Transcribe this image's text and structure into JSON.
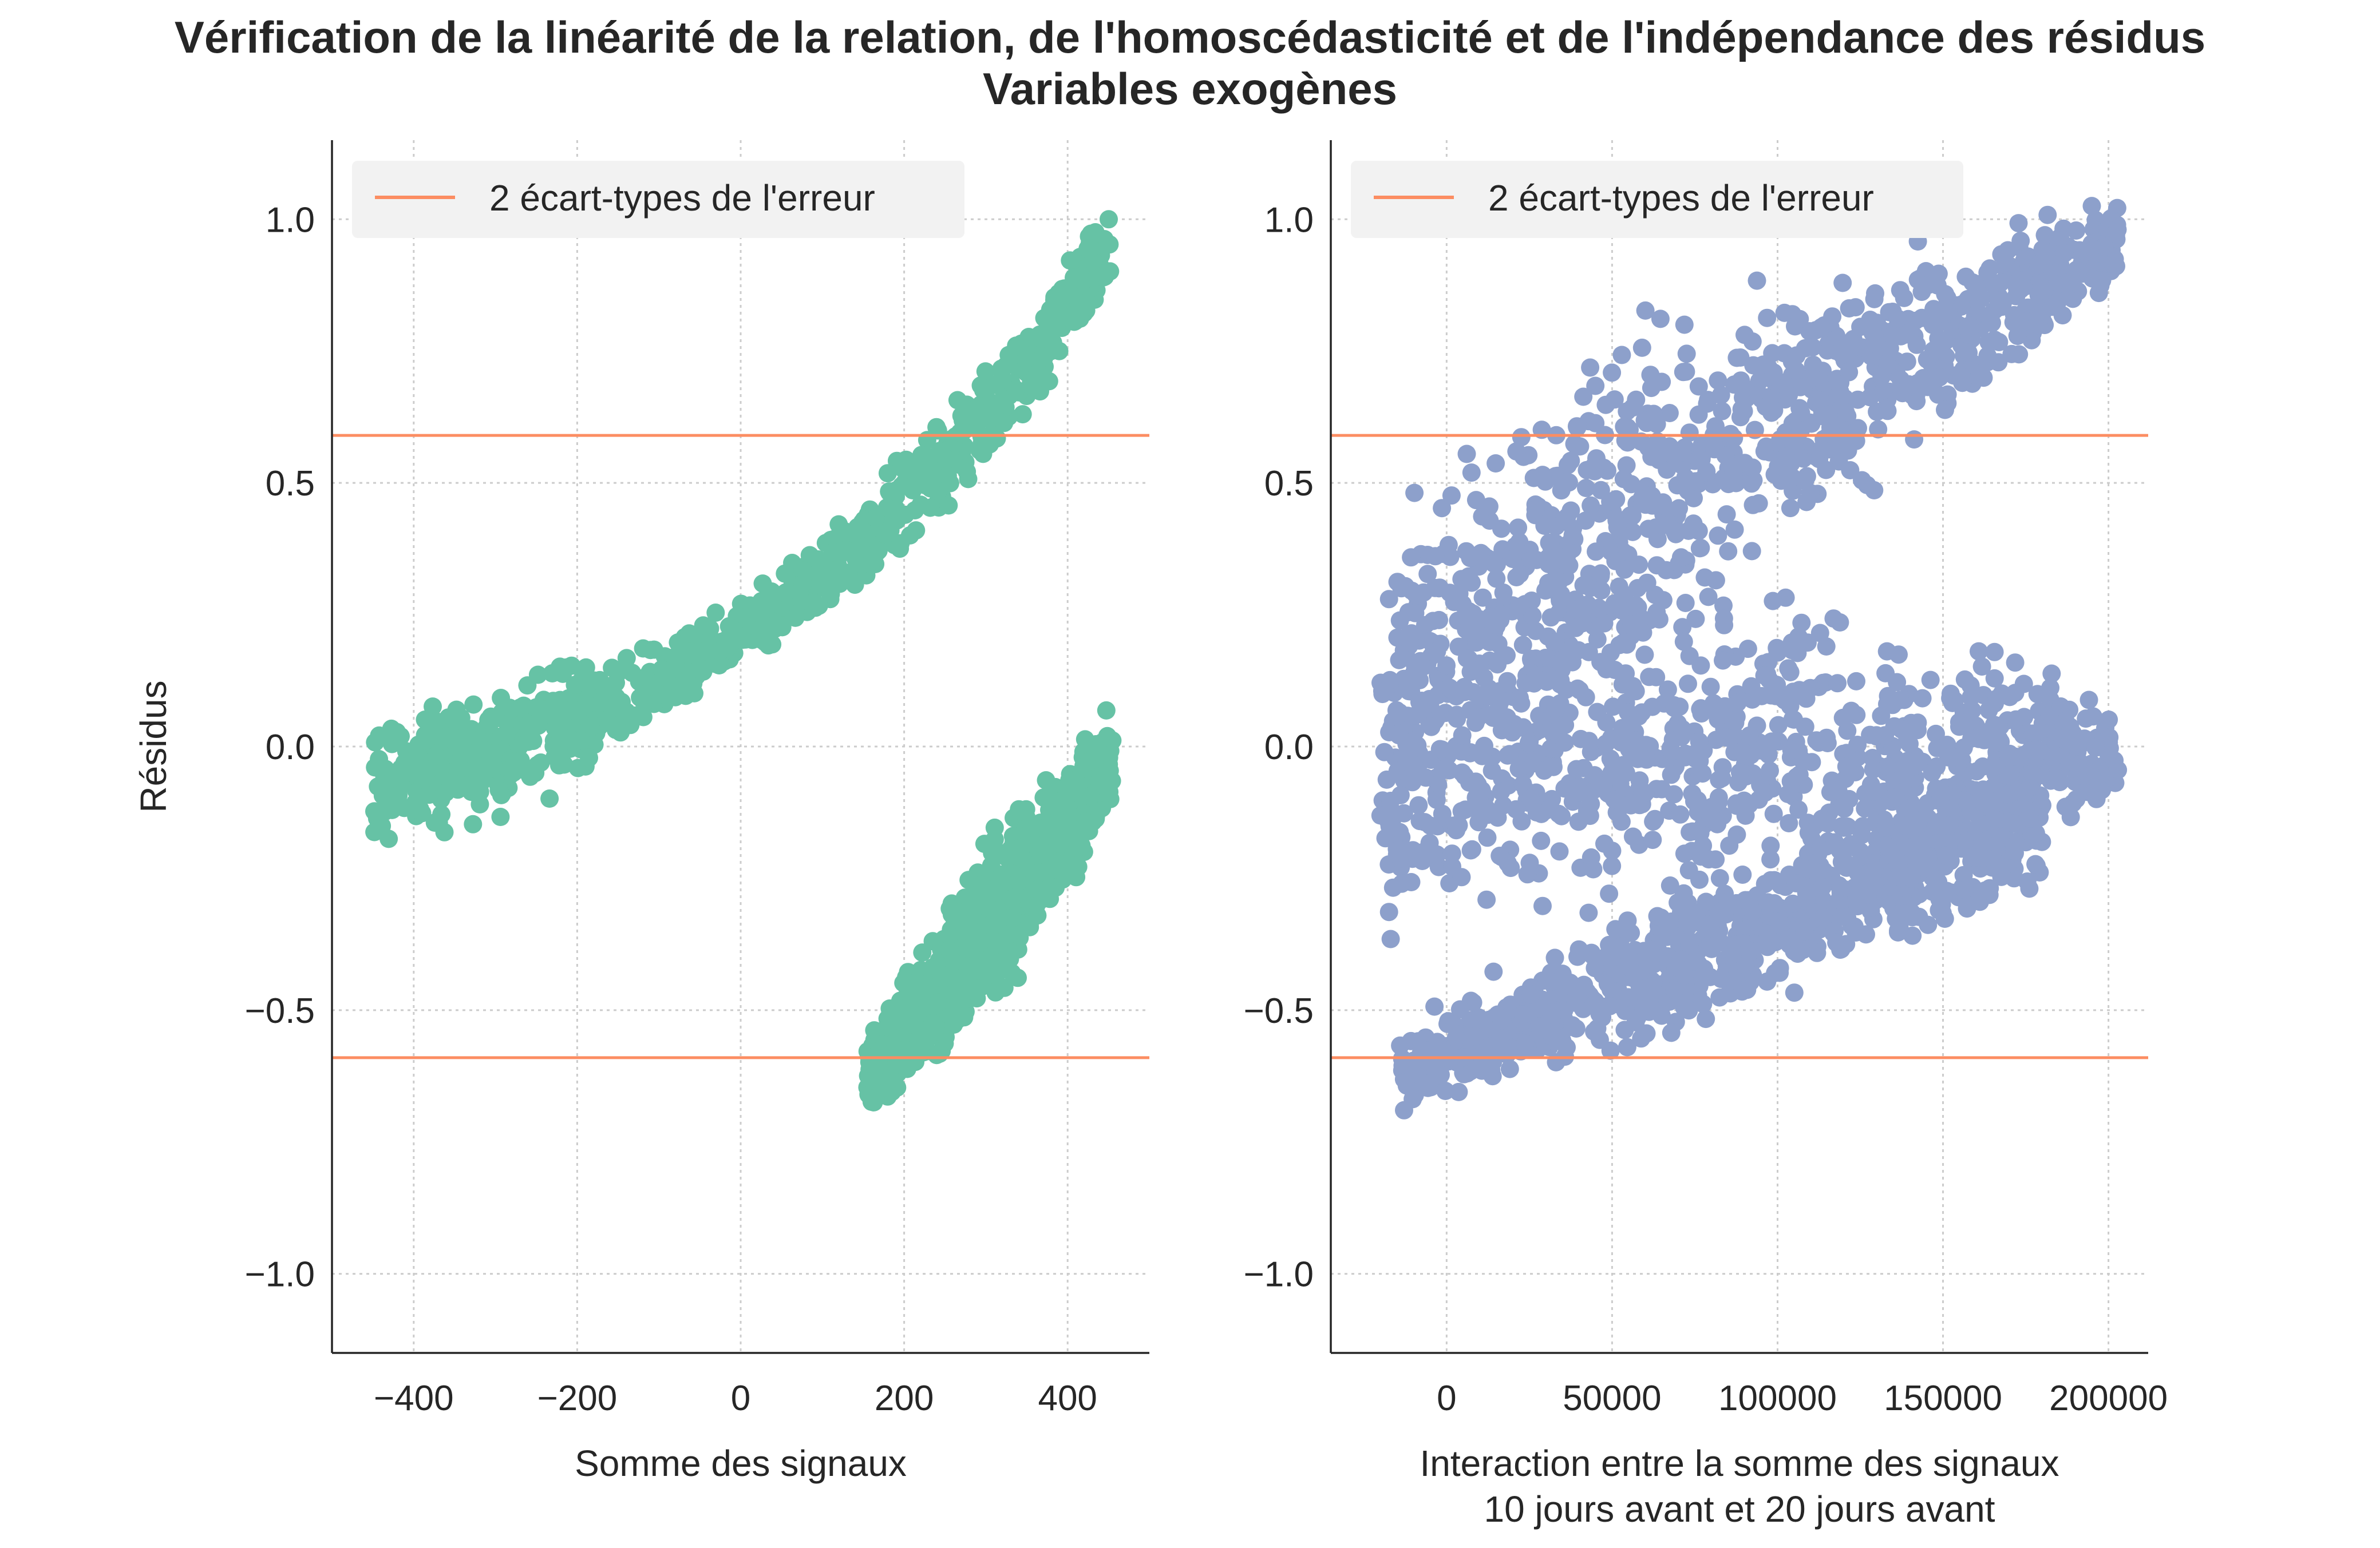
{
  "figure": {
    "title_line1": "Vérification de la linéarité de la relation, de l'homoscédasticité et de l'indépendance des résidus",
    "title_line2": "Variables exogènes"
  },
  "colors": {
    "error_line": "#fc8d62",
    "left_points": "#66c2a5",
    "right_points": "#8da0cb",
    "grid": "#cccccc",
    "spine": "#262626"
  },
  "chart_data": [
    {
      "type": "scatter",
      "title": "",
      "xlabel": "Somme des signaux",
      "ylabel": "Résidus",
      "xlim": [
        -500,
        500
      ],
      "ylim": [
        -1.15,
        1.15
      ],
      "xticks": [
        -400,
        -200,
        0,
        200,
        400
      ],
      "xtick_labels": [
        "−400",
        "−200",
        "0",
        "200",
        "400"
      ],
      "yticks": [
        1.0,
        0.5,
        0.0,
        -0.5,
        -1.0
      ],
      "ytick_labels": [
        "1.0",
        "0.5",
        "0.0",
        "−0.5",
        "−1.0"
      ],
      "grid": true,
      "legend": {
        "position": "top-left",
        "entries": [
          "2 écart-types de l'erreur"
        ]
      },
      "hlines": [
        0.59,
        -0.59
      ],
      "series_color": "#66c2a5",
      "clusters": [
        {
          "name": "upper band",
          "x_range": [
            -450,
            455
          ],
          "center_line": [
            [
              -450,
              -0.07
            ],
            [
              -300,
              -0.02
            ],
            [
              -100,
              0.12
            ],
            [
              100,
              0.32
            ],
            [
              300,
              0.62
            ],
            [
              455,
              0.95
            ]
          ],
          "half_width": [
            [
              -450,
              0.13
            ],
            [
              -250,
              0.13
            ],
            [
              0,
              0.05
            ],
            [
              150,
              0.09
            ],
            [
              455,
              0.1
            ]
          ]
        },
        {
          "name": "lower band",
          "x_range": [
            155,
            455
          ],
          "center_line": [
            [
              155,
              -0.62
            ],
            [
              250,
              -0.45
            ],
            [
              350,
              -0.25
            ],
            [
              455,
              -0.02
            ]
          ],
          "half_width": [
            [
              155,
              0.08
            ],
            [
              300,
              0.17
            ],
            [
              455,
              0.1
            ]
          ]
        }
      ]
    },
    {
      "type": "scatter",
      "title": "",
      "xlabel_line1": "Interaction entre la somme des signaux",
      "xlabel_line2": "10 jours avant et 20 jours avant",
      "ylabel": "",
      "xlim": [
        -35000,
        212000
      ],
      "ylim": [
        -1.15,
        1.15
      ],
      "xticks": [
        0,
        50000,
        100000,
        150000,
        200000
      ],
      "xtick_labels": [
        "0",
        "50000",
        "100000",
        "150000",
        "200000"
      ],
      "yticks": [
        1.0,
        0.5,
        0.0,
        -0.5,
        -1.0
      ],
      "ytick_labels": [
        "1.0",
        "0.5",
        "0.0",
        "−0.5",
        "−1.0"
      ],
      "grid": true,
      "legend": {
        "position": "top-left",
        "entries": [
          "2 écart-types de l'erreur"
        ]
      },
      "hlines": [
        0.59,
        -0.59
      ],
      "series_color": "#8da0cb",
      "clusters": [
        {
          "name": "upper wedge",
          "x_range": [
            -15000,
            203000
          ],
          "center_line": [
            [
              -15000,
              0.1
            ],
            [
              20000,
              0.3
            ],
            [
              80000,
              0.55
            ],
            [
              150000,
              0.78
            ],
            [
              203000,
              0.96
            ]
          ],
          "half_width": [
            [
              -15000,
              0.35
            ],
            [
              50000,
              0.35
            ],
            [
              203000,
              0.08
            ]
          ]
        },
        {
          "name": "middle wedge",
          "x_range": [
            -20000,
            203000
          ],
          "center_line": [
            [
              -20000,
              -0.05
            ],
            [
              50000,
              0.0
            ],
            [
              120000,
              -0.02
            ],
            [
              203000,
              -0.02
            ]
          ],
          "half_width": [
            [
              -20000,
              0.3
            ],
            [
              60000,
              0.35
            ],
            [
              140000,
              0.28
            ],
            [
              203000,
              0.08
            ]
          ]
        },
        {
          "name": "lower wedge",
          "x_range": [
            -15000,
            180000
          ],
          "center_line": [
            [
              -15000,
              -0.62
            ],
            [
              40000,
              -0.48
            ],
            [
              100000,
              -0.33
            ],
            [
              180000,
              -0.12
            ]
          ],
          "half_width": [
            [
              -15000,
              0.08
            ],
            [
              80000,
              0.14
            ],
            [
              180000,
              0.16
            ]
          ]
        }
      ]
    }
  ]
}
